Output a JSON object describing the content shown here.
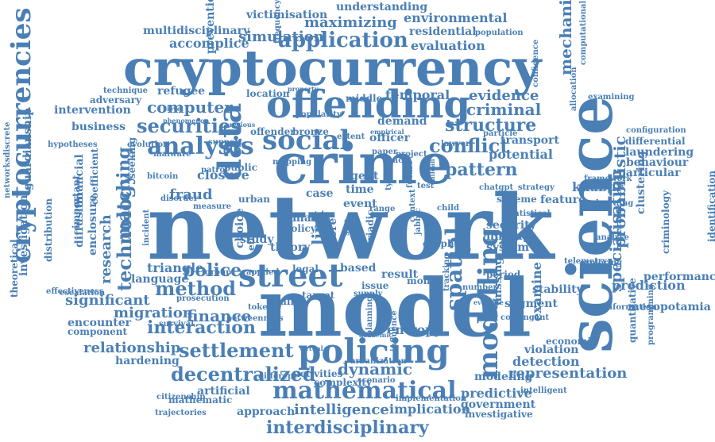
{
  "cloud": {
    "color": "#4a7fb5",
    "background": "#ffffff",
    "words": [
      "network",
      "model",
      "science",
      "crime",
      "cryptocurrency",
      "offending",
      "policing",
      "street",
      "data",
      "social",
      "analysis",
      "modelling",
      "spatial",
      "mathematical",
      "cryptocurrencies",
      "technology",
      "matching",
      "securities",
      "conflict",
      "structure",
      "criminal",
      "application",
      "computer",
      "method",
      "settlement",
      "interaction",
      "decentralized",
      "interdisciplinary",
      "intelligence",
      "dynamic",
      "representation",
      "pattern",
      "fraud",
      "police",
      "finance",
      "migration",
      "significant",
      "relationship",
      "mechanism",
      "probabilistic",
      "specialisation",
      "research",
      "evidence",
      "temporal",
      "potential",
      "transport",
      "detection",
      "predictive",
      "government",
      "implication",
      "evaluation",
      "environmental",
      "residential",
      "understanding",
      "victimisation",
      "multidisciplinary",
      "simulation",
      "accomplice",
      "maximizing",
      "prevention",
      "business",
      "guardianship",
      "networksdiscrete",
      "intervention",
      "adversary",
      "technique",
      "refugee",
      "language",
      "triangle",
      "hardening",
      "encounter",
      "component",
      "mathematic",
      "approach",
      "artificial",
      "modeling",
      "violation",
      "economic",
      "examine",
      "missing",
      "segment",
      "entropy",
      "result",
      "issue",
      "money",
      "target",
      "quality",
      "supply",
      "khabur",
      "feature",
      "laundering",
      "behaviour",
      "particular",
      "prediction",
      "performance",
      "mesopotamia",
      "programming",
      "quantitative",
      "criminology",
      "identification",
      "clustering",
      "differential",
      "configuration",
      "examining",
      "allocation",
      "confidence",
      "computational",
      "population",
      "frequency",
      "location",
      "middle",
      "bronze",
      "offender",
      "urban",
      "closure",
      "enclosure",
      "investigation",
      "theoretical",
      "diffusion",
      "distribution",
      "financial",
      "coefficient",
      "important",
      "hypotheses",
      "evolution",
      "malware",
      "support",
      "patrol",
      "public",
      "mapping",
      "seeking",
      "disorder",
      "bitcoin",
      "measure",
      "prosecution",
      "incident",
      "escalation",
      "effectiveness",
      "survival",
      "betweenness",
      "trajectories",
      "citizenship",
      "different",
      "activities",
      "complexity",
      "scenario",
      "urbanization",
      "implementation",
      "investigative",
      "intelligent",
      "information",
      "exploring",
      "telemetry",
      "analyse",
      "statistical",
      "learning",
      "framework",
      "strategy",
      "particle",
      "scheme",
      "system",
      "finding",
      "security",
      "growth",
      "graph",
      "context",
      "chatgpt",
      "group",
      "study",
      "theory",
      "choice",
      "effect",
      "policy",
      "applied",
      "token",
      "legal",
      "based",
      "triadic",
      "period",
      "number",
      "stability",
      "contingent",
      "evaluate",
      "tracking",
      "planning",
      "influence",
      "academic",
      "virtual",
      "lawyer",
      "chilean",
      "jabbic",
      "extent",
      "project",
      "paper",
      "officer",
      "demand",
      "popularity",
      "property",
      "empirical",
      "previous",
      "phenomenon",
      "level",
      "case",
      "time",
      "event",
      "agent",
      "many",
      "child",
      "range",
      "future",
      "type",
      "space",
      "more",
      "link",
      "size",
      "test"
    ]
  }
}
